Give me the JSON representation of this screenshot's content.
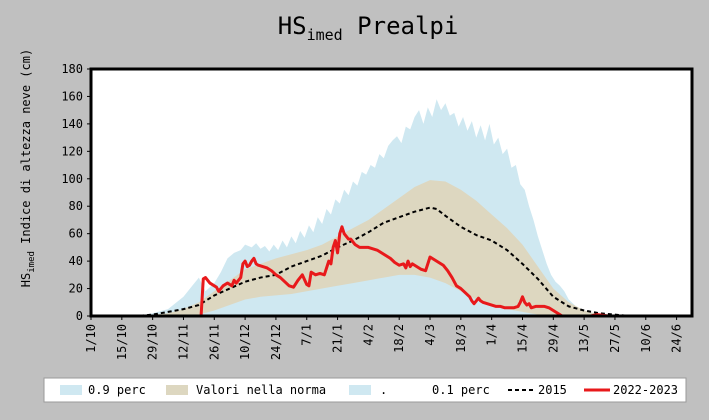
{
  "chart_data": {
    "type": "area",
    "title": {
      "main": "HS",
      "sub": "imed",
      "rest": " Prealpi"
    },
    "ylabel": {
      "main": "HS",
      "sub": "imed",
      "rest": " Indice di altezza neve  (cm)"
    },
    "xlabel": "",
    "ylim": [
      0,
      180
    ],
    "yticks": [
      0,
      20,
      40,
      60,
      80,
      100,
      120,
      140,
      160,
      180
    ],
    "xlim": [
      0,
      273
    ],
    "xticks": [
      {
        "label": "1/10",
        "x": 0
      },
      {
        "label": "15/10",
        "x": 14
      },
      {
        "label": "29/10",
        "x": 28
      },
      {
        "label": "12/11",
        "x": 42
      },
      {
        "label": "26/11",
        "x": 56
      },
      {
        "label": "10/12",
        "x": 70
      },
      {
        "label": "24/12",
        "x": 84
      },
      {
        "label": "7/1",
        "x": 98
      },
      {
        "label": "21/1",
        "x": 112
      },
      {
        "label": "4/2",
        "x": 126
      },
      {
        "label": "18/2",
        "x": 140
      },
      {
        "label": "4/3",
        "x": 154
      },
      {
        "label": "18/3",
        "x": 168
      },
      {
        "label": "1/4",
        "x": 182
      },
      {
        "label": "15/4",
        "x": 196
      },
      {
        "label": "29/4",
        "x": 210
      },
      {
        "label": "13/5",
        "x": 224
      },
      {
        "label": "27/5",
        "x": 238
      },
      {
        "label": "10/6",
        "x": 252
      },
      {
        "label": "24/6",
        "x": 266
      }
    ],
    "grid": false,
    "legend_position": "bottom",
    "series": [
      {
        "name": "0.9 perc",
        "kind": "band-upper",
        "color": "#cfe8f1",
        "x": [
          0,
          14,
          21,
          28,
          35,
          42,
          46,
          49,
          52,
          56,
          59,
          62,
          65,
          68,
          70,
          73,
          75,
          77,
          79,
          81,
          83,
          85,
          87,
          89,
          91,
          93,
          95,
          97,
          99,
          101,
          103,
          105,
          107,
          109,
          111,
          113,
          115,
          117,
          119,
          121,
          123,
          125,
          127,
          129,
          131,
          133,
          135,
          137,
          139,
          141,
          143,
          145,
          147,
          149,
          151,
          153,
          155,
          157,
          159,
          161,
          163,
          165,
          167,
          169,
          171,
          173,
          175,
          177,
          179,
          181,
          183,
          185,
          187,
          189,
          191,
          193,
          195,
          197,
          199,
          201,
          203,
          205,
          207,
          209,
          211,
          213,
          215,
          217,
          219,
          221,
          224,
          228,
          232,
          236,
          240,
          245
        ],
        "values": [
          0,
          0,
          0,
          2,
          5,
          14,
          22,
          28,
          18,
          24,
          32,
          42,
          46,
          48,
          52,
          50,
          53,
          49,
          51,
          47,
          52,
          48,
          55,
          50,
          58,
          53,
          62,
          57,
          66,
          61,
          72,
          67,
          78,
          74,
          85,
          82,
          92,
          88,
          98,
          95,
          105,
          103,
          110,
          108,
          118,
          115,
          124,
          128,
          131,
          126,
          138,
          136,
          145,
          150,
          140,
          152,
          145,
          158,
          150,
          155,
          146,
          148,
          138,
          145,
          135,
          142,
          130,
          139,
          128,
          140,
          125,
          130,
          118,
          122,
          108,
          110,
          96,
          92,
          80,
          70,
          58,
          48,
          38,
          30,
          25,
          22,
          18,
          12,
          9,
          6,
          4,
          2,
          1,
          0,
          0,
          0
        ]
      },
      {
        "name": "Valori nella norma",
        "kind": "band",
        "color": "#ddd7c0",
        "x": [
          0,
          21,
          28,
          35,
          42,
          49,
          56,
          63,
          70,
          77,
          84,
          91,
          98,
          105,
          112,
          119,
          126,
          133,
          140,
          147,
          154,
          161,
          168,
          175,
          182,
          189,
          196,
          203,
          210,
          217,
          224,
          231,
          238,
          245
        ],
        "upper": [
          0,
          0,
          1,
          2,
          5,
          10,
          18,
          26,
          34,
          38,
          42,
          45,
          48,
          52,
          58,
          64,
          70,
          78,
          86,
          94,
          99,
          98,
          92,
          84,
          74,
          64,
          52,
          36,
          20,
          10,
          4,
          1,
          0,
          0
        ],
        "lower": [
          0,
          0,
          0,
          0,
          0,
          1,
          4,
          8,
          12,
          14,
          15,
          16,
          18,
          20,
          22,
          24,
          26,
          28,
          30,
          30,
          28,
          24,
          18,
          12,
          8,
          5,
          3,
          1,
          0,
          0,
          0,
          0,
          0,
          0
        ]
      },
      {
        "name": ".",
        "kind": "band-lower",
        "color": "#cfe8f1",
        "x": [
          0,
          42,
          49,
          56,
          63,
          70,
          77,
          84,
          91,
          98,
          105,
          112,
          119,
          126,
          133,
          140,
          147,
          154,
          161,
          168,
          175,
          182,
          189,
          196,
          203,
          210,
          217,
          224,
          231,
          245
        ],
        "values": [
          0,
          0,
          0,
          1,
          3,
          5,
          6,
          7,
          8,
          9,
          11,
          13,
          15,
          17,
          19,
          22,
          23,
          22,
          20,
          16,
          11,
          7,
          4,
          2,
          1,
          0,
          0,
          0,
          0,
          0
        ]
      },
      {
        "name": "0.1 perc",
        "kind": "legend-only",
        "color": "#cfe8f1"
      },
      {
        "name": "2015",
        "kind": "line",
        "color": "#000000",
        "dash": "4,3",
        "x": [
          0,
          21,
          28,
          35,
          42,
          49,
          56,
          63,
          70,
          77,
          84,
          91,
          98,
          105,
          112,
          119,
          126,
          133,
          140,
          147,
          154,
          157,
          161,
          168,
          175,
          182,
          189,
          196,
          203,
          210,
          217,
          224,
          231,
          238,
          245,
          252,
          273
        ],
        "values": [
          0,
          0,
          1,
          3,
          5,
          8,
          15,
          20,
          25,
          28,
          30,
          36,
          40,
          44,
          50,
          55,
          61,
          68,
          72,
          76,
          79,
          78,
          73,
          65,
          59,
          55,
          48,
          38,
          27,
          14,
          7,
          4,
          2,
          1,
          0,
          0,
          0
        ]
      },
      {
        "name": "2022-2023",
        "kind": "line",
        "color": "#e8191b",
        "x": [
          0,
          48,
          50,
          51,
          52,
          54,
          56,
          57,
          58,
          60,
          62,
          64,
          65,
          66,
          68,
          69,
          70,
          71,
          72,
          73,
          74,
          75,
          76,
          78,
          80,
          82,
          84,
          86,
          88,
          90,
          92,
          94,
          96,
          98,
          99,
          100,
          102,
          104,
          106,
          108,
          109,
          110,
          111,
          112,
          113,
          114,
          115,
          116,
          117,
          118,
          120,
          122,
          124,
          126,
          128,
          130,
          132,
          134,
          136,
          138,
          140,
          142,
          143,
          144,
          145,
          146,
          148,
          150,
          152,
          154,
          156,
          158,
          159,
          160,
          162,
          164,
          166,
          168,
          170,
          172,
          173,
          174,
          175,
          176,
          177,
          178,
          180,
          182,
          184,
          186,
          188,
          190,
          192,
          194,
          195,
          196,
          197,
          198,
          199,
          200,
          202,
          204,
          206,
          208,
          210,
          212,
          214,
          216,
          218,
          220,
          222,
          224,
          227,
          230,
          235,
          245,
          273
        ],
        "values": [
          0,
          0,
          0,
          27,
          28,
          24,
          22,
          21,
          18,
          22,
          24,
          22,
          26,
          24,
          28,
          38,
          40,
          36,
          37,
          40,
          42,
          38,
          37,
          36,
          35,
          33,
          30,
          28,
          25,
          22,
          21,
          26,
          30,
          23,
          22,
          32,
          30,
          31,
          30,
          40,
          38,
          50,
          55,
          46,
          60,
          65,
          60,
          58,
          56,
          56,
          52,
          50,
          50,
          50,
          49,
          48,
          46,
          44,
          42,
          39,
          37,
          38,
          35,
          40,
          36,
          38,
          36,
          34,
          33,
          43,
          41,
          39,
          38,
          37,
          33,
          28,
          22,
          20,
          17,
          14,
          11,
          9,
          11,
          13,
          11,
          10,
          9,
          8,
          7,
          7,
          6,
          6,
          6,
          7,
          10,
          14,
          10,
          8,
          9,
          6,
          7,
          7,
          7,
          6,
          4,
          2,
          0,
          0,
          0,
          0,
          0,
          0,
          0,
          1,
          0,
          0,
          0
        ]
      }
    ]
  },
  "legend": [
    {
      "label": "0.9 perc",
      "kind": "swatch",
      "color": "#cfe8f1"
    },
    {
      "label": "Valori nella norma",
      "kind": "swatch",
      "color": "#ddd7c0"
    },
    {
      "label": ".",
      "kind": "swatch",
      "color": "#cfe8f1"
    },
    {
      "label": "0.1 perc",
      "kind": "text"
    },
    {
      "label": "2015",
      "kind": "dash",
      "color": "#000000"
    },
    {
      "label": "2022-2023",
      "kind": "line",
      "color": "#e8191b"
    }
  ]
}
